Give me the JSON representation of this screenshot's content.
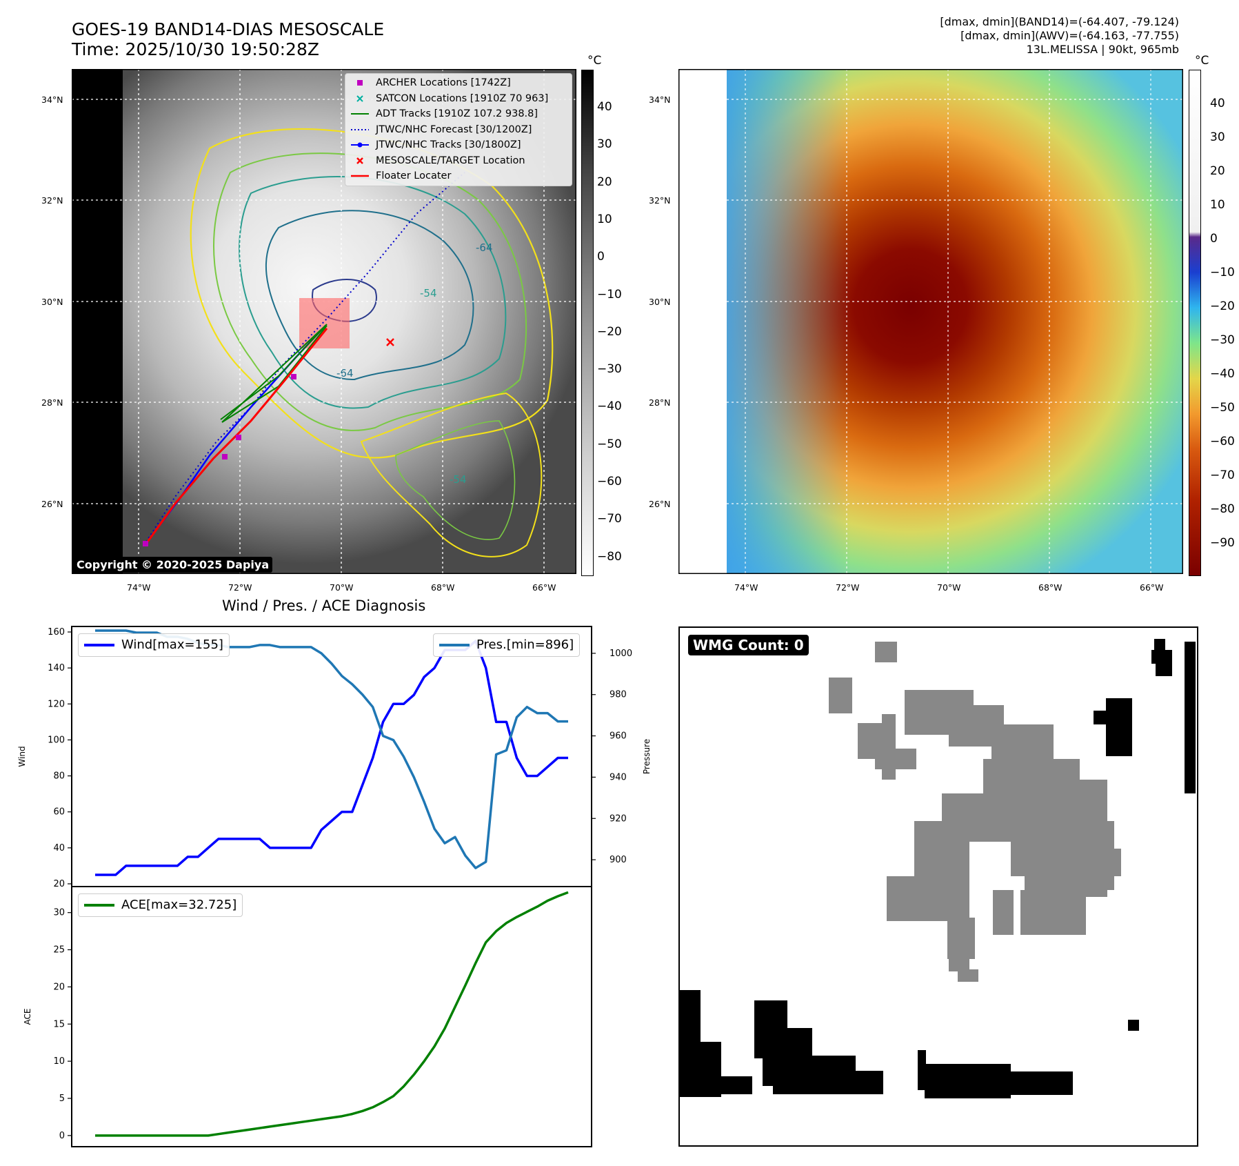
{
  "header": {
    "title_line1": "GOES-19 BAND14-DIAS MESOSCALE",
    "title_line2": "Time: 2025/10/30 19:50:28Z",
    "stats_line1": "[dmax, dmin](BAND14)=(-64.407, -79.124)",
    "stats_line2": "[dmax, dmin](AWV)=(-64.163, -77.755)",
    "stats_line3": "13L.MELISSA | 90kt, 965mb"
  },
  "map_axes": {
    "lat_labels": [
      "34°N",
      "32°N",
      "30°N",
      "28°N",
      "26°N"
    ],
    "lon_labels": [
      "74°W",
      "72°W",
      "70°W",
      "68°W",
      "66°W"
    ]
  },
  "left_map": {
    "contour_labels": [
      "-64",
      "-54",
      "-64",
      "-54"
    ],
    "copyright": "Copyright © 2020-2025 Dapiya",
    "legend": [
      {
        "label": "ARCHER Locations [1742Z]",
        "icon": "magenta-square-marker",
        "color": "#c000c0"
      },
      {
        "label": "SATCON Locations [1910Z 70 963]",
        "icon": "teal-x-marker",
        "color": "#00b0a0"
      },
      {
        "label": "ADT Tracks [1910Z 107.2 938.8]",
        "icon": "green-line",
        "color": "#008000"
      },
      {
        "label": "JTWC/NHC Forecast [30/1200Z]",
        "icon": "blue-dotted-line",
        "color": "#0000cc"
      },
      {
        "label": "JTWC/NHC Tracks [30/1800Z]",
        "icon": "blue-line-dot",
        "color": "#0000ff"
      },
      {
        "label": "MESOSCALE/TARGET Location",
        "icon": "red-x-marker",
        "color": "#ff0000"
      },
      {
        "label": "Floater Locater",
        "icon": "red-line",
        "color": "#ff0000"
      }
    ],
    "colorbar": {
      "unit": "°C",
      "ticks": [
        "40",
        "30",
        "20",
        "10",
        "0",
        "−10",
        "−20",
        "−30",
        "−40",
        "−50",
        "−60",
        "−70",
        "−80"
      ]
    }
  },
  "right_map": {
    "colorbar": {
      "unit": "°C",
      "ticks": [
        "40",
        "30",
        "20",
        "10",
        "0",
        "−10",
        "−20",
        "−30",
        "−40",
        "−50",
        "−60",
        "−70",
        "−80",
        "−90"
      ]
    }
  },
  "wmg": {
    "count_label": "WMG Count: 0"
  },
  "colors": {
    "wind": "#0000ff",
    "pressure": "#1f77b4",
    "ace": "#008000",
    "track_red": "#ff0000",
    "gray_cells": "#888888"
  },
  "chart_data": [
    {
      "type": "line",
      "title": "Wind / Pres. / ACE Diagnosis",
      "ylabel": "Wind",
      "y2label": "Pressure",
      "ylim": [
        20,
        160
      ],
      "y2lim": [
        887,
        1013
      ],
      "yticks": [
        "160",
        "140",
        "120",
        "100",
        "80",
        "60",
        "40",
        "20"
      ],
      "y2ticks": [
        "1000",
        "980",
        "960",
        "940",
        "920",
        "900"
      ],
      "series": [
        {
          "name": "Wind[max=155]",
          "axis": "left",
          "values": [
            25,
            25,
            25,
            30,
            30,
            30,
            30,
            30,
            30,
            35,
            35,
            40,
            45,
            45,
            45,
            45,
            45,
            40,
            40,
            40,
            40,
            40,
            50,
            55,
            60,
            60,
            75,
            90,
            110,
            120,
            120,
            125,
            135,
            140,
            150,
            150,
            150,
            155,
            140,
            110,
            110,
            90,
            80,
            80,
            85,
            90,
            90
          ]
        },
        {
          "name": "Pres.[min=896]",
          "axis": "right",
          "values": [
            1011,
            1011,
            1011,
            1011,
            1010,
            1010,
            1010,
            1008,
            1008,
            1007,
            1005,
            1004,
            1004,
            1003,
            1003,
            1003,
            1004,
            1004,
            1003,
            1003,
            1003,
            1003,
            1000,
            995,
            989,
            985,
            980,
            974,
            960,
            958,
            950,
            940,
            928,
            915,
            908,
            911,
            902,
            896,
            899,
            951,
            953,
            969,
            974,
            971,
            971,
            967,
            967
          ]
        }
      ]
    },
    {
      "type": "line",
      "ylabel": "ACE",
      "ylim": [
        -1.5,
        33.5
      ],
      "yticks": [
        "30",
        "25",
        "20",
        "15",
        "10",
        "5",
        "0"
      ],
      "series": [
        {
          "name": "ACE[max=32.725]",
          "values": [
            0,
            0,
            0,
            0,
            0,
            0,
            0,
            0,
            0,
            0,
            0,
            0,
            0.2,
            0.4,
            0.6,
            0.8,
            1.0,
            1.2,
            1.4,
            1.6,
            1.8,
            2.0,
            2.2,
            2.4,
            2.6,
            2.9,
            3.3,
            3.8,
            4.5,
            5.3,
            6.6,
            8.2,
            10.0,
            12.0,
            14.4,
            17.3,
            20.2,
            23.2,
            26.0,
            27.5,
            28.6,
            29.4,
            30.1,
            30.8,
            31.6,
            32.2,
            32.725
          ]
        }
      ]
    }
  ]
}
